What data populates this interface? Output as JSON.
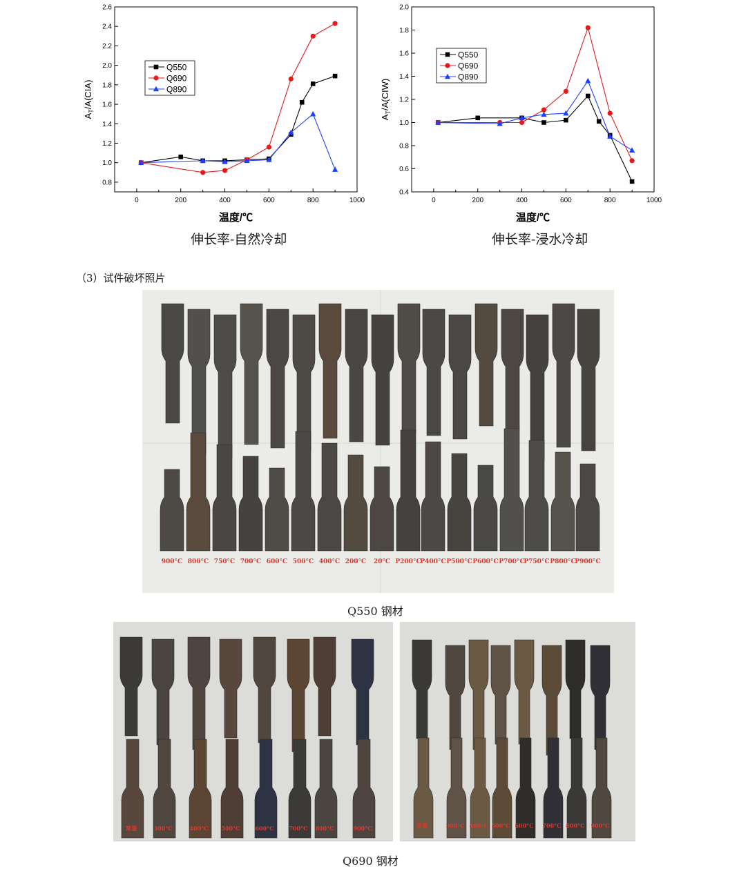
{
  "colors": {
    "q550": "#000000",
    "q690": "#e41a1c",
    "q890": "#1f3fff"
  },
  "chart_data": [
    {
      "type": "line",
      "caption": "伸长率-自然冷却",
      "xlabel": "温度/℃",
      "ylabel": "AT/A(CIA)",
      "ylabel_main": "A",
      "ylabel_sub": "T",
      "ylabel_rest": "/A(CIA)",
      "xlim": [
        -100,
        1000
      ],
      "ylim": [
        0.7,
        2.6
      ],
      "xticks": [
        0,
        200,
        400,
        600,
        800,
        1000
      ],
      "yticks": [
        0.8,
        1.0,
        1.2,
        1.4,
        1.6,
        1.8,
        2.0,
        2.2,
        2.4,
        2.6
      ],
      "legend_position": "upper-left",
      "series": [
        {
          "name": "Q550",
          "marker": "square",
          "color": "#000000",
          "x": [
            20,
            200,
            300,
            400,
            500,
            600,
            700,
            750,
            800,
            900
          ],
          "y": [
            1.0,
            1.06,
            1.02,
            1.02,
            1.03,
            1.04,
            1.29,
            1.62,
            1.81,
            1.89
          ]
        },
        {
          "name": "Q690",
          "marker": "circle",
          "color": "#e41a1c",
          "x": [
            20,
            300,
            400,
            500,
            600,
            700,
            800,
            900
          ],
          "y": [
            1.0,
            0.9,
            0.92,
            1.03,
            1.16,
            1.86,
            2.3,
            2.43
          ]
        },
        {
          "name": "Q890",
          "marker": "triangle",
          "color": "#1f3fff",
          "x": [
            20,
            300,
            400,
            500,
            600,
            700,
            800,
            900
          ],
          "y": [
            1.0,
            1.02,
            1.01,
            1.02,
            1.03,
            1.31,
            1.5,
            0.93
          ]
        }
      ]
    },
    {
      "type": "line",
      "caption": "伸长率-浸水冷却",
      "xlabel": "温度/℃",
      "ylabel": "AT/A(CIW)",
      "ylabel_main": "A",
      "ylabel_sub": "T",
      "ylabel_rest": "/A(CIW)",
      "xlim": [
        -100,
        1000
      ],
      "ylim": [
        0.4,
        2.0
      ],
      "xticks": [
        0,
        200,
        400,
        600,
        800,
        1000
      ],
      "yticks": [
        0.4,
        0.6,
        0.8,
        1.0,
        1.2,
        1.4,
        1.6,
        1.8,
        2.0
      ],
      "legend_position": "upper-left",
      "series": [
        {
          "name": "Q550",
          "marker": "square",
          "color": "#000000",
          "x": [
            20,
            200,
            400,
            500,
            600,
            700,
            750,
            800,
            900
          ],
          "y": [
            1.0,
            1.04,
            1.04,
            1.0,
            1.02,
            1.23,
            1.01,
            0.89,
            0.49
          ]
        },
        {
          "name": "Q690",
          "marker": "circle",
          "color": "#e41a1c",
          "x": [
            20,
            300,
            400,
            500,
            600,
            700,
            800,
            900
          ],
          "y": [
            1.0,
            1.0,
            1.0,
            1.11,
            1.27,
            1.82,
            1.08,
            0.67
          ]
        },
        {
          "name": "Q890",
          "marker": "triangle",
          "color": "#1f3fff",
          "x": [
            20,
            300,
            400,
            500,
            600,
            700,
            800,
            900
          ],
          "y": [
            1.0,
            0.99,
            1.04,
            1.07,
            1.08,
            1.36,
            0.88,
            0.76
          ]
        }
      ]
    }
  ],
  "section": {
    "title": "（3）试件破坏照片"
  },
  "photos": {
    "q550": {
      "caption": "Q550 钢材",
      "bottom_labels": [
        "900°C",
        "800°C",
        "750°C",
        "700°C",
        "600°C",
        "500°C",
        "400°C",
        "200°C",
        "20°C",
        "P200°C",
        "P400°C",
        "P500°C",
        "P600°C",
        "P700°C",
        "P750°C",
        "P800°C",
        "P900°C"
      ]
    },
    "q690": {
      "caption": "Q690 钢材",
      "left_labels": [
        "常温",
        "300°C",
        "400°C",
        "500°C",
        "600°C",
        "700°C",
        "800°C",
        "900°C"
      ],
      "right_labels": [
        "常温",
        "300°C",
        "400°C",
        "500°C",
        "600°C",
        "700°C",
        "800°C",
        "900°C"
      ]
    }
  }
}
